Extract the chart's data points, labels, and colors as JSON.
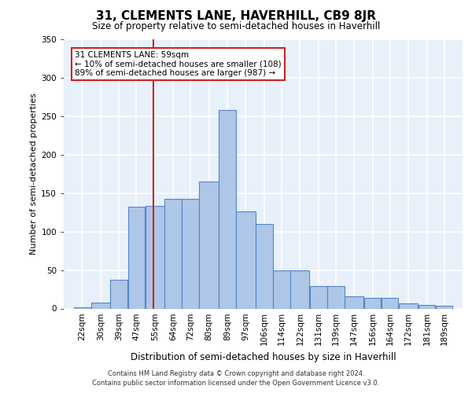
{
  "title": "31, CLEMENTS LANE, HAVERHILL, CB9 8JR",
  "subtitle": "Size of property relative to semi-detached houses in Haverhill",
  "xlabel": "Distribution of semi-detached houses by size in Haverhill",
  "ylabel": "Number of semi-detached properties",
  "footer_line1": "Contains HM Land Registry data © Crown copyright and database right 2024.",
  "footer_line2": "Contains public sector information licensed under the Open Government Licence v3.0.",
  "annotation_line1": "31 CLEMENTS LANE: 59sqm",
  "annotation_line2": "← 10% of semi-detached houses are smaller (108)",
  "annotation_line3": "89% of semi-detached houses are larger (987) →",
  "property_size": 59,
  "categories": [
    "22sqm",
    "30sqm",
    "39sqm",
    "47sqm",
    "55sqm",
    "64sqm",
    "72sqm",
    "80sqm",
    "89sqm",
    "97sqm",
    "106sqm",
    "114sqm",
    "122sqm",
    "131sqm",
    "139sqm",
    "147sqm",
    "156sqm",
    "164sqm",
    "172sqm",
    "181sqm",
    "189sqm"
  ],
  "bin_edges": [
    22,
    30,
    39,
    47,
    55,
    64,
    72,
    80,
    89,
    97,
    106,
    114,
    122,
    131,
    139,
    147,
    156,
    164,
    172,
    181,
    189,
    197
  ],
  "values": [
    2,
    8,
    37,
    132,
    133,
    143,
    143,
    165,
    258,
    126,
    110,
    50,
    50,
    29,
    29,
    16,
    14,
    14,
    7,
    5,
    4
  ],
  "bar_color": "#aec6e8",
  "bar_edge_color": "#5585c5",
  "marker_color": "#cc2222",
  "background_color": "#e8f0fa",
  "grid_color": "#ffffff",
  "annotation_box_color": "#ffffff",
  "annotation_box_edge": "#cc2222",
  "ylim": [
    0,
    350
  ],
  "yticks": [
    0,
    50,
    100,
    150,
    200,
    250,
    300,
    350
  ],
  "title_fontsize": 11,
  "subtitle_fontsize": 8.5,
  "ylabel_fontsize": 8,
  "xlabel_fontsize": 8.5,
  "tick_fontsize": 7.5,
  "footer_fontsize": 6.0,
  "annotation_fontsize": 7.5
}
